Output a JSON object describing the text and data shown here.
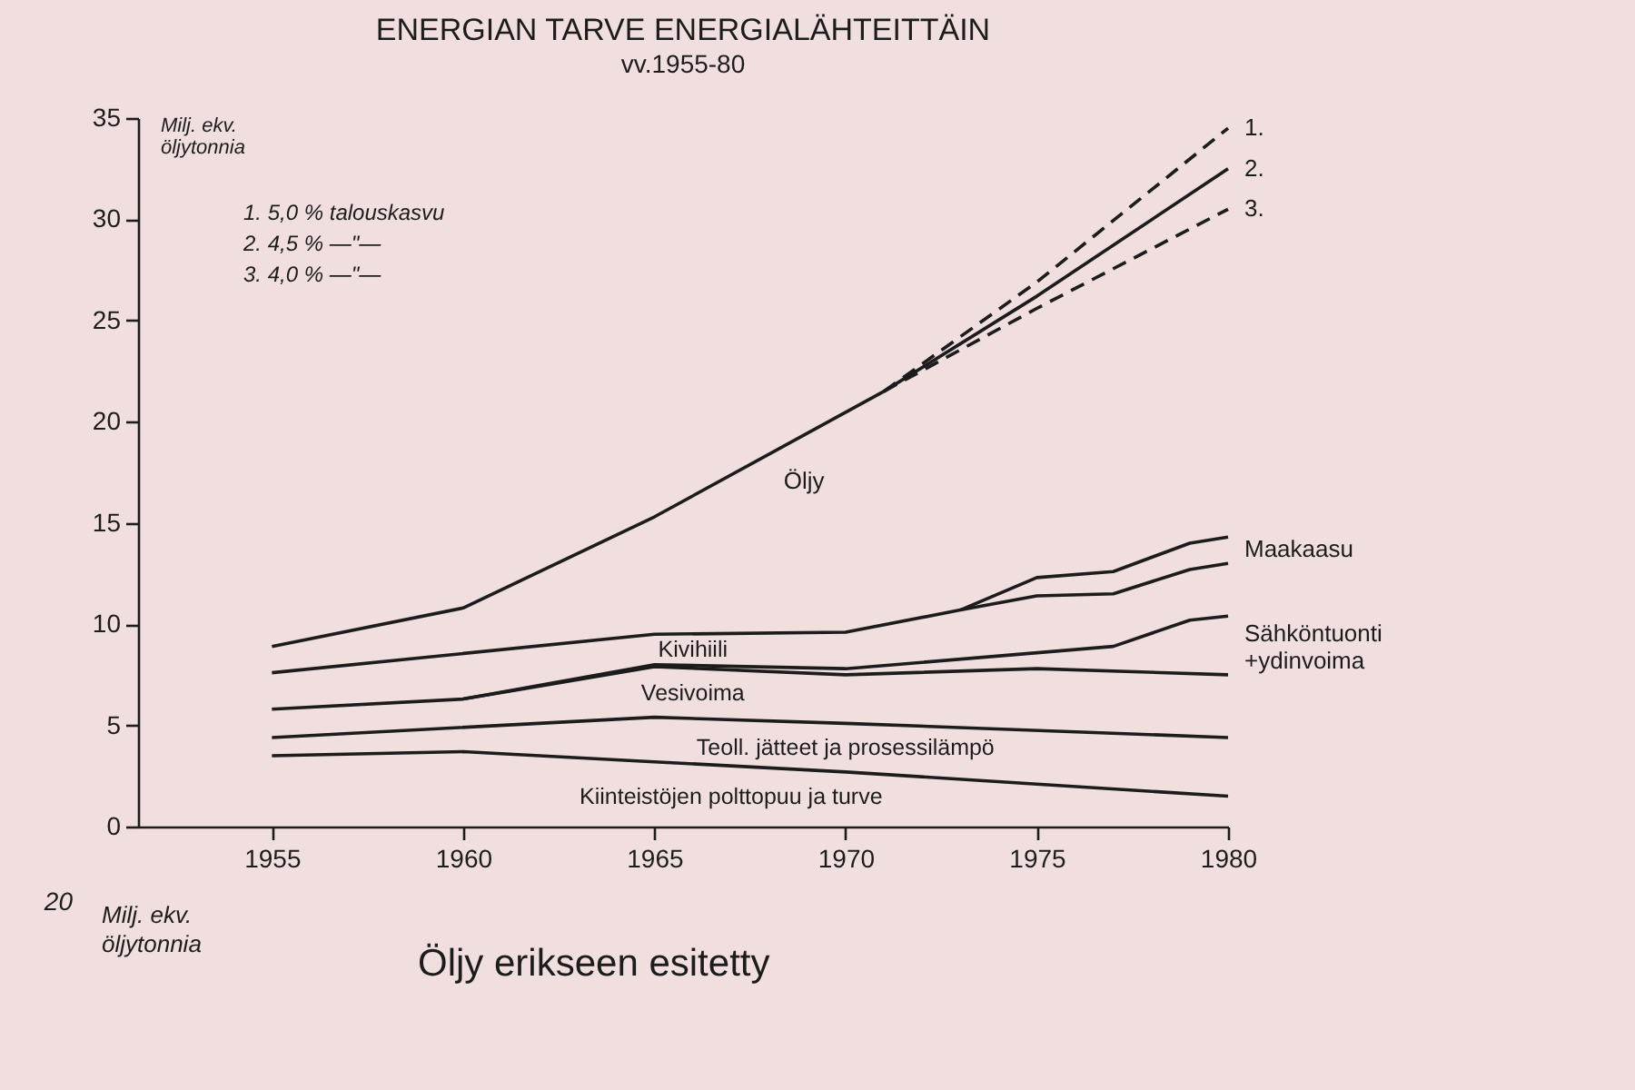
{
  "chart_data": [
    {
      "type": "line",
      "title": "ENERGIAN TARVE ENERGIALÄHTEITTÄIN",
      "subtitle": "vv.1955-80",
      "ylabel": "Milj. ekv. öljytonnia",
      "annotations": [
        "1. 5,0 % talouskasvu",
        "2. 4,5 % —\"—",
        "3. 4,0 % —\"—",
        {
          "text": "2.",
          "x": 1980,
          "y": 32.5
        }
      ],
      "xlim": [
        1951.5,
        1980
      ],
      "xticks": [
        1955,
        1960,
        1965,
        1970,
        1975,
        1980
      ],
      "ylim": [
        0,
        35
      ],
      "yticks": [
        0,
        5,
        10,
        15,
        20,
        25,
        30,
        35
      ],
      "series": [
        {
          "name": "Kiinteistöjen polttopuu ja turve",
          "color": "#1c1c1c",
          "x": [
            1955,
            1960,
            1965,
            1970,
            1975,
            1980
          ],
          "values": [
            3.5,
            3.7,
            3.2,
            2.7,
            2.1,
            1.5
          ]
        },
        {
          "name": "Teoll. jätteet ja prosessilämpö",
          "color": "#1c1c1c",
          "x": [
            1955,
            1965,
            1970,
            1980
          ],
          "values": [
            4.4,
            5.4,
            5.1,
            4.4
          ]
        },
        {
          "name": "Vesivoima",
          "color": "#1c1c1c",
          "x": [
            1955,
            1960,
            1965,
            1970,
            1975,
            1980
          ],
          "values": [
            5.8,
            6.3,
            7.9,
            7.5,
            7.8,
            7.5
          ]
        },
        {
          "name": "Sähköntuonti +ydinvoima",
          "color": "#1c1c1c",
          "x": [
            1960,
            1965,
            1970,
            1977,
            1979,
            1980
          ],
          "values": [
            6.3,
            8.0,
            7.8,
            8.9,
            10.2,
            10.4
          ]
        },
        {
          "name": "Kivihiili",
          "color": "#1c1c1c",
          "x": [
            1955,
            1965,
            1970,
            1973,
            1975,
            1977,
            1979,
            1980
          ],
          "values": [
            7.6,
            9.5,
            9.6,
            10.7,
            11.4,
            11.5,
            12.7,
            13.0
          ]
        },
        {
          "name": "Maakaasu",
          "color": "#1c1c1c",
          "x": [
            1973,
            1975,
            1977,
            1979,
            1980
          ],
          "values": [
            10.7,
            12.3,
            12.6,
            14.0,
            14.3
          ]
        },
        {
          "name": "Öljy",
          "color": "#1c1c1c",
          "x": [
            1955,
            1960,
            1965,
            1971,
            1975,
            1980
          ],
          "values": [
            8.9,
            10.8,
            15.3,
            21.5,
            26.2,
            32.5
          ]
        },
        {
          "name": "1.",
          "color": "#1c1c1c",
          "line_style": "dashed",
          "x": [
            1971,
            1975,
            1980
          ],
          "values": [
            21.5,
            26.9,
            34.5
          ]
        },
        {
          "name": "3.",
          "color": "#1c1c1c",
          "line_style": "dashed",
          "x": [
            1971,
            1975,
            1980
          ],
          "values": [
            21.5,
            25.6,
            30.5
          ]
        }
      ]
    },
    {
      "type": "other",
      "title": "Öljy erikseen esitetty",
      "ylabel": "Milj. ekv. öljytonnia",
      "annotations": [
        "20"
      ]
    }
  ]
}
